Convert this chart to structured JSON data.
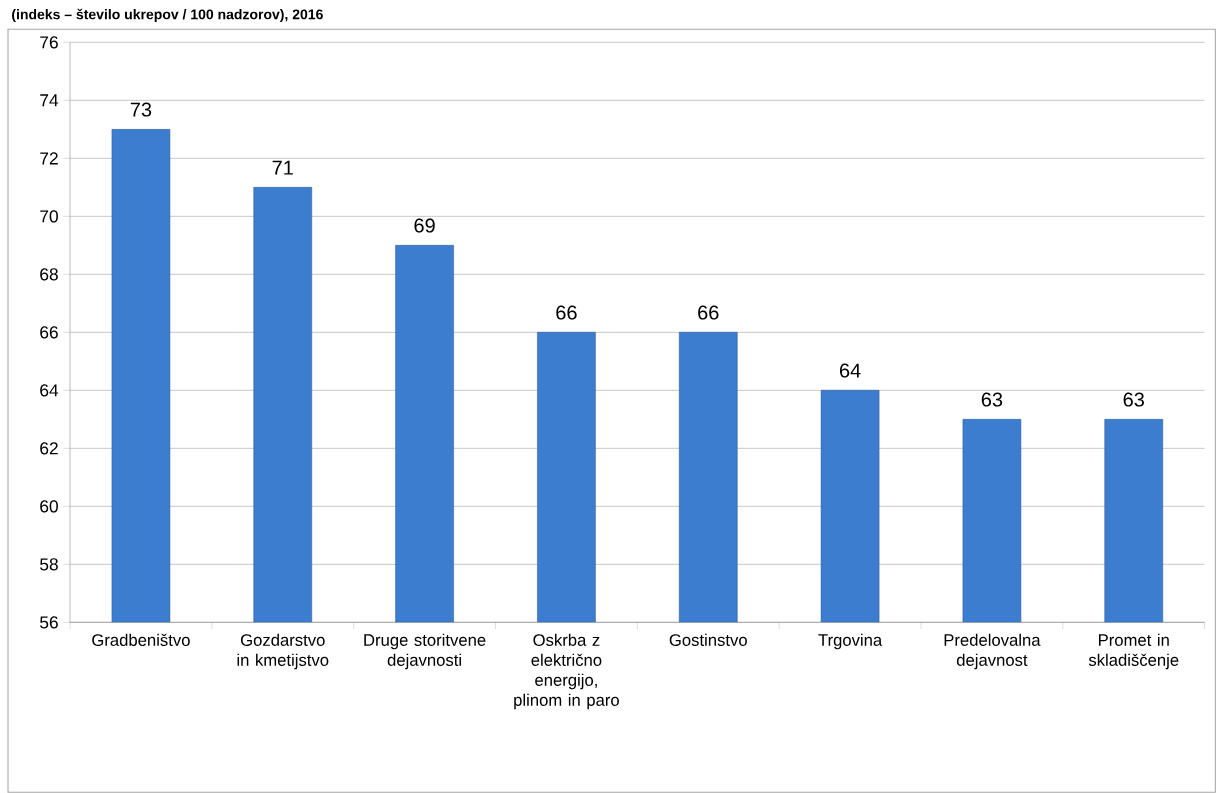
{
  "chart_data": {
    "type": "bar",
    "title": "(indeks – število ukrepov / 100 nadzorov), 2016",
    "categories": [
      "Gradbeništvo",
      "Gozdarstvo in kmetijstvo",
      "Druge storitvene dejavnosti",
      "Oskrba z električno energijo, plinom in paro",
      "Gostinstvo",
      "Trgovina",
      "Predelovalna dejavnost",
      "Promet in skladiščenje"
    ],
    "values": [
      73,
      71,
      69,
      66,
      66,
      64,
      63,
      63
    ],
    "color": "#3c7dd0",
    "ylim": [
      56,
      76
    ],
    "yticks": [
      56,
      58,
      60,
      62,
      64,
      66,
      68,
      70,
      72,
      74,
      76
    ],
    "grid": "y",
    "data_labels": true
  }
}
